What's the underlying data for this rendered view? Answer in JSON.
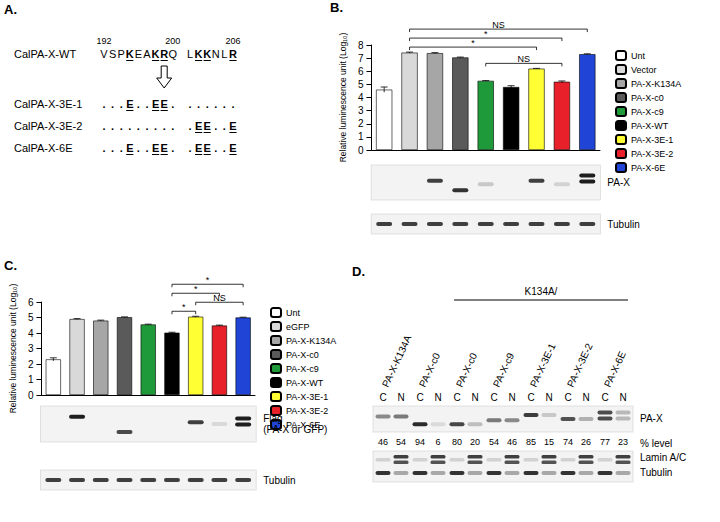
{
  "panel_labels": [
    "A.",
    "B.",
    "C.",
    "D."
  ],
  "panel_a": {
    "wild_type": {
      "name": "CalPA-X-WT",
      "sequence": "VSPKEAKRQ LKKNLR",
      "numbers": [
        {
          "number": 192,
          "index": 0
        },
        {
          "number": 200,
          "index": 8
        },
        {
          "number": 206,
          "index": 15
        }
      ],
      "highlighted": [
        3,
        6,
        7,
        11,
        12,
        15
      ]
    },
    "mutants": [
      {
        "name": "CalPA-X-3E-1",
        "sequence": "...E..EE. ......"
      },
      {
        "name": "CalPA-X-3E-2",
        "sequence": "......... .EE..E"
      },
      {
        "name": "CalPA-X-6E",
        "sequence": "...E..EE. .EE..E"
      }
    ]
  },
  "chart_data": [
    {
      "type": "bar",
      "y_label": "Relative luminescence unit (Log₁₀)",
      "categories": [
        "Unt",
        "Vector",
        "PA-X-K134A",
        "PA-X-c0",
        "PA-X-c9",
        "PA-X-WT",
        "PA-X-3E-1",
        "PA-X-3E-2",
        "PA-X-6E"
      ],
      "values": [
        4.6,
        7.42,
        7.38,
        7.05,
        5.27,
        4.8,
        6.2,
        5.2,
        7.3
      ],
      "errors": [
        0.2,
        0.04,
        0.04,
        0.03,
        0.02,
        0.1,
        0.02,
        0.06,
        0.03
      ],
      "colors": [
        "#ffffff",
        "#d9d9d9",
        "#a6a6a6",
        "#5a5a5a",
        "#1f9a3a",
        "#000000",
        "#ffff33",
        "#e8202a",
        "#1f44d6"
      ],
      "ylim": [
        0,
        8
      ],
      "yticks": [
        0,
        1,
        2,
        3,
        4,
        5,
        6,
        7,
        8
      ],
      "grid": false,
      "legend": "right",
      "tick_labels": "y",
      "significance": [
        {
          "from": "Vector",
          "to": "PA-X-6E",
          "label": "NS"
        },
        {
          "from": "Vector",
          "to": "PA-X-3E-2",
          "label": "*"
        },
        {
          "from": "Vector",
          "to": "PA-X-3E-1",
          "label": "*"
        },
        {
          "from": "PA-X-c9",
          "to": "PA-X-3E-2",
          "label": "NS"
        }
      ],
      "blot_labels": [
        [
          "PA-X"
        ],
        [
          "Tubulin"
        ]
      ]
    },
    {
      "type": "bar",
      "y_label": "Relative luminescence unit (Log₁₀)",
      "categories": [
        "Unt",
        "eGFP",
        "PA-X-K134A",
        "PA-X-c0",
        "PA-X-c9",
        "PA-X-WT",
        "PA-X-3E-1",
        "PA-X-3E-2",
        "PA-X-6E"
      ],
      "values": [
        2.3,
        4.9,
        4.8,
        5.02,
        4.55,
        4.02,
        5.05,
        4.48,
        5.0
      ],
      "errors": [
        0.1,
        0.03,
        0.03,
        0.02,
        0.02,
        0.03,
        0.03,
        0.03,
        0.02
      ],
      "colors": [
        "#ffffff",
        "#d9d9d9",
        "#a6a6a6",
        "#5a5a5a",
        "#1f9a3a",
        "#000000",
        "#ffff33",
        "#e8202a",
        "#1f44d6"
      ],
      "ylim": [
        0,
        6
      ],
      "yticks": [
        0,
        1,
        2,
        3,
        4,
        5,
        6
      ],
      "grid": false,
      "legend": "right",
      "tick_labels": "y",
      "significance": [
        {
          "from": "PA-X-3E-1",
          "to": "PA-X-6E",
          "label": "NS"
        },
        {
          "from": "PA-X-WT",
          "to": "PA-X-6E",
          "label": "*"
        },
        {
          "from": "PA-X-WT",
          "to": "PA-X-3E-2",
          "label": "*"
        },
        {
          "from": "PA-X-WT",
          "to": "PA-X-3E-1",
          "label": "*"
        }
      ],
      "blot_labels": [
        [
          "Flag",
          "(PA-X or GFP)"
        ],
        [
          "Tubulin"
        ]
      ]
    }
  ],
  "panel_d": {
    "group_label": "K134A/",
    "fractions": [
      "C",
      "N"
    ],
    "percent_label": "% level",
    "lanes": [
      {
        "name": "PA-X-K134A",
        "group": false,
        "percent": [
          46,
          54
        ]
      },
      {
        "name": "PA-X-c0",
        "group": false,
        "percent": [
          94,
          6
        ]
      },
      {
        "name": "PA-X-c0",
        "group": true,
        "percent": [
          80,
          20
        ]
      },
      {
        "name": "PA-X-c9",
        "group": true,
        "percent": [
          54,
          46
        ]
      },
      {
        "name": "PA-X-3E-1",
        "group": true,
        "percent": [
          85,
          15
        ]
      },
      {
        "name": "PA-X-3E-2",
        "group": true,
        "percent": [
          74,
          26
        ]
      },
      {
        "name": "PA-X-6E",
        "group": true,
        "percent": [
          77,
          23
        ]
      }
    ],
    "blot_labels": [
      "PA-X",
      "Lamin A/C",
      "Tubulin"
    ]
  }
}
